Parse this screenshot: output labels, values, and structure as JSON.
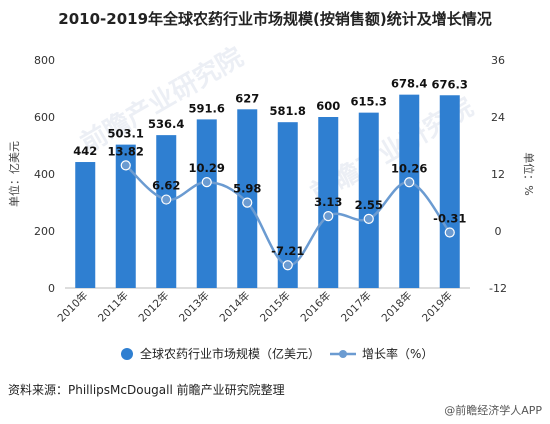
{
  "source_text": "资料来源：PhillipsMcDougall 前瞻产业研究院整理",
  "credit_text": "@前瞻经济学人APP",
  "watermark_text": "前瞻产业研究院",
  "colors": {
    "bar": "#2f7fd1",
    "line": "#6b9bd1",
    "marker": "#6b9bd1"
  },
  "chart_data": {
    "type": "bar",
    "title": "2010-2019年全球农药行业市场规模(按销售额)统计及增长情况",
    "categories": [
      "2010年",
      "2011年",
      "2012年",
      "2013年",
      "2014年",
      "2015年",
      "2016年",
      "2017年",
      "2018年",
      "2019年"
    ],
    "series": [
      {
        "name": "全球农药行业市场规模（亿美元）",
        "type": "bar",
        "axis": "left",
        "values": [
          442,
          503.1,
          536.4,
          591.6,
          627,
          581.8,
          600,
          615.3,
          678.4,
          676.3
        ],
        "labels": [
          "442",
          "503.1",
          "536.4",
          "591.6",
          "627",
          "581.8",
          "600",
          "615.3",
          "678.4",
          "676.3"
        ]
      },
      {
        "name": "增长率（%）",
        "type": "line",
        "axis": "right",
        "values": [
          null,
          13.82,
          6.62,
          10.29,
          5.98,
          -7.21,
          3.13,
          2.55,
          10.26,
          -0.31
        ],
        "labels": [
          "",
          "13.82",
          "6.62",
          "10.29",
          "5.98",
          "-7.21",
          "3.13",
          "2.55",
          "10.26",
          "-0.31"
        ]
      }
    ],
    "y_left": {
      "label": "单位：亿美元",
      "min": 0,
      "max": 800,
      "ticks": [
        0,
        200,
        400,
        600,
        800
      ],
      "tick_labels": [
        "0",
        "200",
        "400",
        "600",
        "800"
      ]
    },
    "y_right": {
      "label": "单位：%",
      "min": -12,
      "max": 36,
      "ticks": [
        -12,
        0,
        12,
        24,
        36
      ],
      "tick_labels": [
        "-12",
        "0",
        "12",
        "24",
        "36"
      ]
    },
    "grid": false,
    "legend": "bottom"
  }
}
